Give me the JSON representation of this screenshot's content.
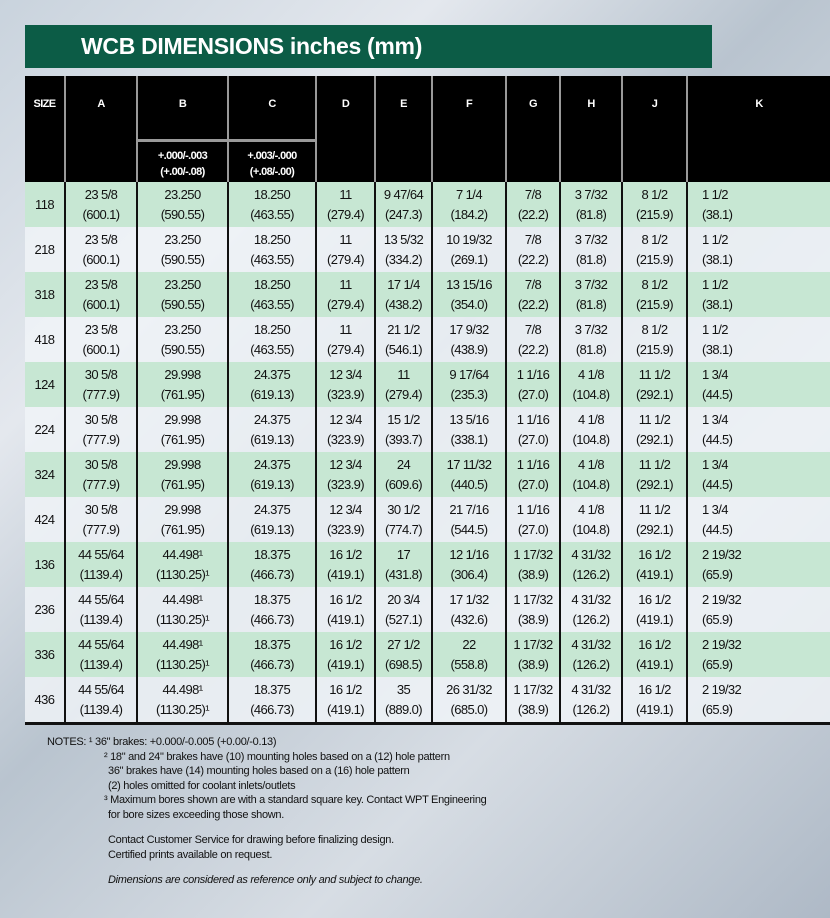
{
  "title": "WCB DIMENSIONS inches (mm)",
  "colors": {
    "title_bar": "#0c5c46",
    "row_highlight": "#c7e7d3",
    "header_bg": "#000000"
  },
  "headers": [
    "SIZE",
    "A",
    "B",
    "C",
    "D",
    "E",
    "F",
    "G",
    "H",
    "J",
    "K"
  ],
  "tolerances": {
    "B": [
      "+.000/-.003",
      "(+.00/-.08)"
    ],
    "C": [
      "+.003/-.000",
      "(+.08/-.00)"
    ]
  },
  "rows": [
    {
      "size": "118",
      "cells": [
        [
          "23 5/8",
          "(600.1)"
        ],
        [
          "23.250",
          "(590.55)"
        ],
        [
          "18.250",
          "(463.55)"
        ],
        [
          "11",
          "(279.4)"
        ],
        [
          "9 47/64",
          "(247.3)"
        ],
        [
          "7 1/4",
          "(184.2)"
        ],
        [
          "7/8",
          "(22.2)"
        ],
        [
          "3 7/32",
          "(81.8)"
        ],
        [
          "8 1/2",
          "(215.9)"
        ],
        [
          "1 1/2",
          "(38.1)"
        ]
      ]
    },
    {
      "size": "218",
      "cells": [
        [
          "23 5/8",
          "(600.1)"
        ],
        [
          "23.250",
          "(590.55)"
        ],
        [
          "18.250",
          "(463.55)"
        ],
        [
          "11",
          "(279.4)"
        ],
        [
          "13 5/32",
          "(334.2)"
        ],
        [
          "10 19/32",
          "(269.1)"
        ],
        [
          "7/8",
          "(22.2)"
        ],
        [
          "3 7/32",
          "(81.8)"
        ],
        [
          "8 1/2",
          "(215.9)"
        ],
        [
          "1 1/2",
          "(38.1)"
        ]
      ]
    },
    {
      "size": "318",
      "cells": [
        [
          "23 5/8",
          "(600.1)"
        ],
        [
          "23.250",
          "(590.55)"
        ],
        [
          "18.250",
          "(463.55)"
        ],
        [
          "11",
          "(279.4)"
        ],
        [
          "17 1/4",
          "(438.2)"
        ],
        [
          "13 15/16",
          "(354.0)"
        ],
        [
          "7/8",
          "(22.2)"
        ],
        [
          "3 7/32",
          "(81.8)"
        ],
        [
          "8 1/2",
          "(215.9)"
        ],
        [
          "1 1/2",
          "(38.1)"
        ]
      ]
    },
    {
      "size": "418",
      "cells": [
        [
          "23 5/8",
          "(600.1)"
        ],
        [
          "23.250",
          "(590.55)"
        ],
        [
          "18.250",
          "(463.55)"
        ],
        [
          "11",
          "(279.4)"
        ],
        [
          "21 1/2",
          "(546.1)"
        ],
        [
          "17 9/32",
          "(438.9)"
        ],
        [
          "7/8",
          "(22.2)"
        ],
        [
          "3 7/32",
          "(81.8)"
        ],
        [
          "8 1/2",
          "(215.9)"
        ],
        [
          "1 1/2",
          "(38.1)"
        ]
      ]
    },
    {
      "size": "124",
      "cells": [
        [
          "30 5/8",
          "(777.9)"
        ],
        [
          "29.998",
          "(761.95)"
        ],
        [
          "24.375",
          "(619.13)"
        ],
        [
          "12 3/4",
          "(323.9)"
        ],
        [
          "11",
          "(279.4)"
        ],
        [
          "9 17/64",
          "(235.3)"
        ],
        [
          "1 1/16",
          "(27.0)"
        ],
        [
          "4 1/8",
          "(104.8)"
        ],
        [
          "11 1/2",
          "(292.1)"
        ],
        [
          "1 3/4",
          "(44.5)"
        ]
      ]
    },
    {
      "size": "224",
      "cells": [
        [
          "30 5/8",
          "(777.9)"
        ],
        [
          "29.998",
          "(761.95)"
        ],
        [
          "24.375",
          "(619.13)"
        ],
        [
          "12 3/4",
          "(323.9)"
        ],
        [
          "15 1/2",
          "(393.7)"
        ],
        [
          "13 5/16",
          "(338.1)"
        ],
        [
          "1 1/16",
          "(27.0)"
        ],
        [
          "4 1/8",
          "(104.8)"
        ],
        [
          "11 1/2",
          "(292.1)"
        ],
        [
          "1 3/4",
          "(44.5)"
        ]
      ]
    },
    {
      "size": "324",
      "cells": [
        [
          "30 5/8",
          "(777.9)"
        ],
        [
          "29.998",
          "(761.95)"
        ],
        [
          "24.375",
          "(619.13)"
        ],
        [
          "12 3/4",
          "(323.9)"
        ],
        [
          "24",
          "(609.6)"
        ],
        [
          "17 11/32",
          "(440.5)"
        ],
        [
          "1 1/16",
          "(27.0)"
        ],
        [
          "4 1/8",
          "(104.8)"
        ],
        [
          "11 1/2",
          "(292.1)"
        ],
        [
          "1 3/4",
          "(44.5)"
        ]
      ]
    },
    {
      "size": "424",
      "cells": [
        [
          "30 5/8",
          "(777.9)"
        ],
        [
          "29.998",
          "(761.95)"
        ],
        [
          "24.375",
          "(619.13)"
        ],
        [
          "12 3/4",
          "(323.9)"
        ],
        [
          "30 1/2",
          "(774.7)"
        ],
        [
          "21 7/16",
          "(544.5)"
        ],
        [
          "1 1/16",
          "(27.0)"
        ],
        [
          "4 1/8",
          "(104.8)"
        ],
        [
          "11 1/2",
          "(292.1)"
        ],
        [
          "1 3/4",
          "(44.5)"
        ]
      ]
    },
    {
      "size": "136",
      "cells": [
        [
          "44 55/64",
          "(1139.4)"
        ],
        [
          "44.498¹",
          "(1130.25)¹"
        ],
        [
          "18.375",
          "(466.73)"
        ],
        [
          "16 1/2",
          "(419.1)"
        ],
        [
          "17",
          "(431.8)"
        ],
        [
          "12 1/16",
          "(306.4)"
        ],
        [
          "1 17/32",
          "(38.9)"
        ],
        [
          "4 31/32",
          "(126.2)"
        ],
        [
          "16 1/2",
          "(419.1)"
        ],
        [
          "2 19/32",
          "(65.9)"
        ]
      ]
    },
    {
      "size": "236",
      "cells": [
        [
          "44 55/64",
          "(1139.4)"
        ],
        [
          "44.498¹",
          "(1130.25)¹"
        ],
        [
          "18.375",
          "(466.73)"
        ],
        [
          "16 1/2",
          "(419.1)"
        ],
        [
          "20 3/4",
          "(527.1)"
        ],
        [
          "17 1/32",
          "(432.6)"
        ],
        [
          "1 17/32",
          "(38.9)"
        ],
        [
          "4 31/32",
          "(126.2)"
        ],
        [
          "16 1/2",
          "(419.1)"
        ],
        [
          "2 19/32",
          "(65.9)"
        ]
      ]
    },
    {
      "size": "336",
      "cells": [
        [
          "44 55/64",
          "(1139.4)"
        ],
        [
          "44.498¹",
          "(1130.25)¹"
        ],
        [
          "18.375",
          "(466.73)"
        ],
        [
          "16 1/2",
          "(419.1)"
        ],
        [
          "27 1/2",
          "(698.5)"
        ],
        [
          "22",
          "(558.8)"
        ],
        [
          "1 17/32",
          "(38.9)"
        ],
        [
          "4 31/32",
          "(126.2)"
        ],
        [
          "16 1/2",
          "(419.1)"
        ],
        [
          "2 19/32",
          "(65.9)"
        ]
      ]
    },
    {
      "size": "436",
      "cells": [
        [
          "44 55/64",
          "(1139.4)"
        ],
        [
          "44.498¹",
          "(1130.25)¹"
        ],
        [
          "18.375",
          "(466.73)"
        ],
        [
          "16 1/2",
          "(419.1)"
        ],
        [
          "35",
          "(889.0)"
        ],
        [
          "26 31/32",
          "(685.0)"
        ],
        [
          "1 17/32",
          "(38.9)"
        ],
        [
          "4 31/32",
          "(126.2)"
        ],
        [
          "16 1/2",
          "(419.1)"
        ],
        [
          "2 19/32",
          "(65.9)"
        ]
      ]
    }
  ],
  "notes": {
    "label": "NOTES:",
    "n1": "¹ 36\" brakes: +0.000/-0.005 (+0.00/-0.13)",
    "n2a": "² 18\" and 24\" brakes have (10) mounting holes based on a (12) hole pattern",
    "n2b": "36\" brakes have (14) mounting holes based on a (16) hole pattern",
    "n2c": "(2) holes omitted for coolant inlets/outlets",
    "n3a": "³ Maximum bores shown are with a standard square key. Contact WPT Engineering",
    "n3b": "for bore sizes exceeding those shown.",
    "contact": "Contact Customer Service for drawing before finalizing design.",
    "certified": "Certified prints available on request.",
    "disclaimer": "Dimensions are considered as reference only and subject to change."
  }
}
